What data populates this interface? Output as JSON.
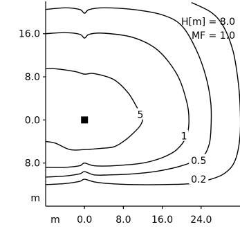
{
  "chart_data": {
    "type": "contour",
    "title": "",
    "annotations": [
      "H[m] = 8.0",
      "MF = 1.0"
    ],
    "x_axis": {
      "tick_labels": [
        "m",
        "0.0",
        "8.0",
        "16.0",
        "24.0"
      ],
      "tick_values": [
        null,
        0,
        8,
        16,
        24
      ]
    },
    "y_axis": {
      "tick_labels": [
        "16.0",
        "8.0",
        "0.0",
        "8.0",
        "m"
      ],
      "tick_values": [
        16,
        8,
        0,
        -8,
        null
      ]
    },
    "xlim": [
      -8,
      32
    ],
    "ylim": [
      -16,
      22
    ],
    "grid": false,
    "source_marker": {
      "x": 0,
      "y": 0,
      "shape": "square"
    },
    "contours": [
      {
        "level": "5",
        "label_at": [
          11.5,
          1.0
        ],
        "points": [
          [
            -8,
            9.5
          ],
          [
            -6,
            9.5
          ],
          [
            -2,
            9.0
          ],
          [
            0,
            8.5
          ],
          [
            2,
            8.6
          ],
          [
            6,
            7.5
          ],
          [
            9,
            5.0
          ],
          [
            11,
            2.0
          ],
          [
            12,
            0.5
          ],
          [
            11.5,
            -1.0
          ],
          [
            10,
            -2.5
          ],
          [
            8,
            -4.0
          ],
          [
            6,
            -5.0
          ],
          [
            3,
            -5.3
          ],
          [
            0,
            -5.5
          ],
          [
            -3,
            -5.5
          ],
          [
            -6,
            -4.3
          ],
          [
            -8,
            -4.0
          ]
        ]
      },
      {
        "level": "1",
        "label_at": [
          20.5,
          -3.0
        ],
        "points": [
          [
            -8,
            16.0
          ],
          [
            -4,
            16.2
          ],
          [
            -1,
            15.9
          ],
          [
            0,
            15.2
          ],
          [
            1,
            15.9
          ],
          [
            4,
            16.1
          ],
          [
            10,
            15.3
          ],
          [
            15,
            13.0
          ],
          [
            19,
            8.5
          ],
          [
            21,
            3.5
          ],
          [
            21.5,
            0.0
          ],
          [
            21,
            -3.0
          ],
          [
            19,
            -5.5
          ],
          [
            16,
            -7.0
          ],
          [
            12,
            -8.0
          ],
          [
            6,
            -8.5
          ],
          [
            2,
            -8.5
          ],
          [
            0,
            -8.0
          ],
          [
            -1,
            -8.5
          ],
          [
            -4,
            -8.8
          ],
          [
            -8,
            -8.8
          ]
        ]
      },
      {
        "level": "0.5",
        "label_at": [
          23.5,
          -7.5
        ],
        "points": [
          [
            -8,
            20.5
          ],
          [
            -4,
            20.8
          ],
          [
            -1,
            20.5
          ],
          [
            0,
            19.8
          ],
          [
            1,
            20.5
          ],
          [
            4,
            20.8
          ],
          [
            10,
            20.5
          ],
          [
            16,
            19.5
          ],
          [
            20,
            17.5
          ],
          [
            23,
            13.0
          ],
          [
            25,
            8.0
          ],
          [
            26,
            3.0
          ],
          [
            26,
            -2.0
          ],
          [
            25.5,
            -5.0
          ],
          [
            24,
            -7.0
          ],
          [
            20,
            -8.5
          ],
          [
            15,
            -9.5
          ],
          [
            10,
            -10.0
          ],
          [
            5,
            -10.2
          ],
          [
            2,
            -10.2
          ],
          [
            0,
            -9.6
          ],
          [
            -1,
            -10.0
          ],
          [
            -4,
            -10.4
          ],
          [
            -8,
            -10.6
          ]
        ]
      },
      {
        "level": "0.2",
        "label_at": [
          23.5,
          -11.0
        ],
        "points": [
          [
            22,
            21.8
          ],
          [
            26,
            20.0
          ],
          [
            28.5,
            17.5
          ],
          [
            30.5,
            13.0
          ],
          [
            31.5,
            8.0
          ],
          [
            32,
            3.0
          ],
          [
            32,
            -3.0
          ],
          [
            31,
            -7.5
          ],
          [
            29,
            -9.8
          ],
          [
            26,
            -11.0
          ],
          [
            22,
            -11.8
          ],
          [
            16,
            -12.0
          ],
          [
            10,
            -12.0
          ],
          [
            5,
            -11.8
          ],
          [
            2,
            -11.5
          ],
          [
            0,
            -11.0
          ],
          [
            -1,
            -11.4
          ],
          [
            -4,
            -11.8
          ],
          [
            -8,
            -12.0
          ]
        ]
      }
    ]
  }
}
